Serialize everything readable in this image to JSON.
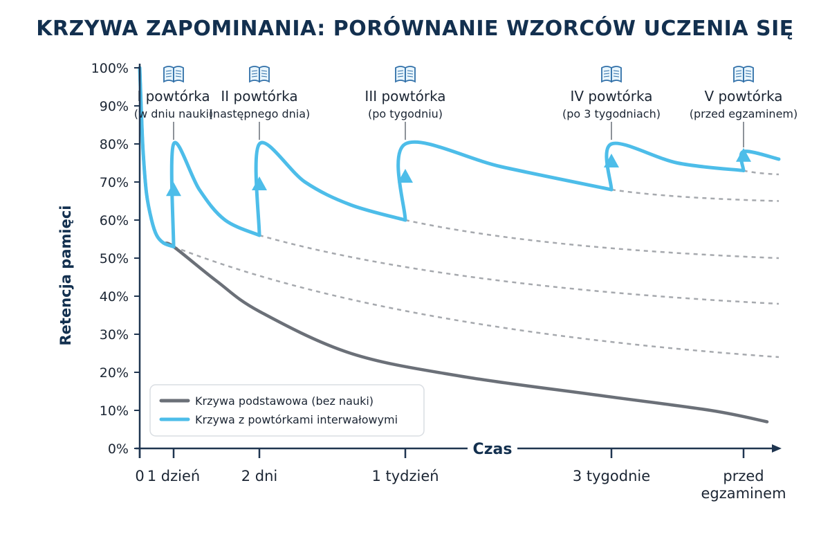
{
  "chart_data": {
    "type": "line",
    "title": "KRZYWA ZAPOMINANIA: PORÓWNANIE WZORCÓW UCZENIA SIĘ",
    "xlabel": "Czas",
    "ylabel": "Retencja pamięci",
    "ylim": [
      0,
      100
    ],
    "y_ticks": [
      "0%",
      "10%",
      "20%",
      "30%",
      "40%",
      "50%",
      "60%",
      "70%",
      "80%",
      "90%",
      "100%"
    ],
    "x_ticks": [
      {
        "label": "0",
        "label2": ""
      },
      {
        "label": "1 dzień",
        "label2": ""
      },
      {
        "label": "2 dni",
        "label2": ""
      },
      {
        "label": "1 tydzień",
        "label2": ""
      },
      {
        "label": "3 tygodnie",
        "label2": ""
      },
      {
        "label": "przed",
        "label2": "egzaminem"
      }
    ],
    "series": [
      {
        "name": "Krzywa podstawowa (bez nauki)",
        "color": "#6b7078",
        "points": [
          [
            0,
            100
          ],
          [
            0.05,
            88
          ],
          [
            0.1,
            78
          ],
          [
            0.2,
            67
          ],
          [
            0.35,
            60
          ],
          [
            0.5,
            56
          ],
          [
            0.7,
            54
          ],
          [
            1,
            53
          ],
          [
            1.5,
            44
          ],
          [
            2,
            36
          ],
          [
            3,
            25
          ],
          [
            4,
            19
          ],
          [
            5,
            14
          ],
          [
            6,
            10
          ],
          [
            6.5,
            7
          ]
        ]
      },
      {
        "name": "Krzywa z powtórkami interwałowymi",
        "color": "#4dbde9",
        "points": [
          [
            0,
            100
          ],
          [
            0.05,
            88
          ],
          [
            0.1,
            78
          ],
          [
            0.2,
            67
          ],
          [
            0.35,
            60
          ],
          [
            0.5,
            56
          ],
          [
            0.7,
            54
          ],
          [
            1,
            53
          ],
          [
            1,
            80
          ],
          [
            1.3,
            68
          ],
          [
            1.6,
            60
          ],
          [
            2,
            56
          ],
          [
            2,
            80
          ],
          [
            2.5,
            70
          ],
          [
            3,
            64
          ],
          [
            3.6,
            60
          ],
          [
            3.6,
            80
          ],
          [
            4.3,
            74
          ],
          [
            5.1,
            68
          ],
          [
            5.1,
            80
          ],
          [
            5.7,
            75
          ],
          [
            6.3,
            73
          ],
          [
            6.3,
            78
          ],
          [
            6.6,
            76
          ]
        ]
      }
    ],
    "reference_lines_dashed": [
      {
        "from": [
          1,
          53
        ],
        "to": [
          6.6,
          24
        ]
      },
      {
        "from": [
          2,
          56
        ],
        "to": [
          6.6,
          38
        ]
      },
      {
        "from": [
          3.6,
          60
        ],
        "to": [
          6.6,
          50
        ]
      },
      {
        "from": [
          5.1,
          68
        ],
        "to": [
          6.6,
          65
        ]
      },
      {
        "from": [
          6.3,
          73
        ],
        "to": [
          6.6,
          72
        ]
      }
    ],
    "annotations": [
      {
        "x": 1,
        "line1": "I powtórka",
        "line2": "(w dniu nauki)"
      },
      {
        "x": 2,
        "line1": "II powtórka",
        "line2": "(następnego dnia)"
      },
      {
        "x": 3.6,
        "line1": "III powtórka",
        "line2": "(po tygodniu)"
      },
      {
        "x": 5.1,
        "line1": "IV powtórka",
        "line2": "(po 3 tygodniach)"
      },
      {
        "x": 6.3,
        "line1": "V powtórka",
        "line2": "(przed egzaminem)"
      }
    ],
    "legend": {
      "placement": "bottom-left"
    },
    "grid": false
  }
}
